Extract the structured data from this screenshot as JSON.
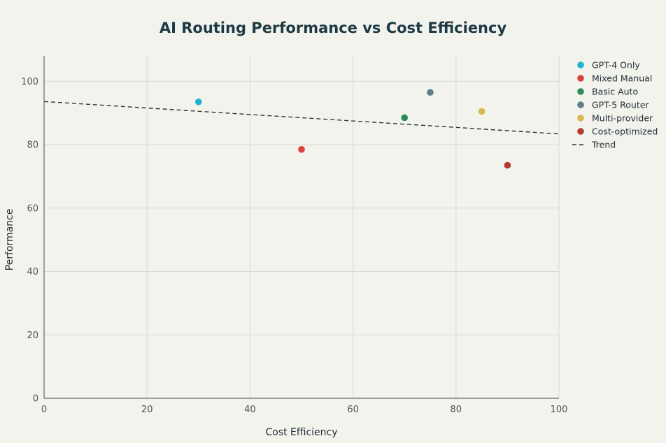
{
  "chart_data": {
    "type": "scatter",
    "title": "AI Routing Performance vs Cost Efficiency",
    "xlabel": "Cost Efficiency",
    "ylabel": "Performance",
    "xlim": [
      0,
      100
    ],
    "ylim": [
      0,
      108
    ],
    "xticks": [
      0,
      20,
      40,
      60,
      80,
      100
    ],
    "yticks": [
      0,
      20,
      40,
      60,
      80,
      100
    ],
    "grid": true,
    "legend_position": "top-right",
    "series": [
      {
        "name": "GPT-4 Only",
        "color": "#1fb5cf",
        "points": [
          {
            "x": 30,
            "y": 93.5
          }
        ]
      },
      {
        "name": "Mixed Manual",
        "color": "#d8403d",
        "points": [
          {
            "x": 50,
            "y": 78.5
          }
        ]
      },
      {
        "name": "Basic Auto",
        "color": "#2e8b57",
        "points": [
          {
            "x": 70,
            "y": 88.5
          }
        ]
      },
      {
        "name": "GPT-5 Router",
        "color": "#5e7f88",
        "points": [
          {
            "x": 75,
            "y": 96.5
          }
        ]
      },
      {
        "name": "Multi-provider",
        "color": "#d9b84b",
        "points": [
          {
            "x": 85,
            "y": 90.5
          }
        ]
      },
      {
        "name": "Cost-optimized",
        "color": "#b53a35",
        "points": [
          {
            "x": 90,
            "y": 73.5
          }
        ]
      }
    ],
    "trend": {
      "name": "Trend",
      "color": "#333333",
      "style": "dashed",
      "points": [
        {
          "x": 0,
          "y": 93.6
        },
        {
          "x": 100,
          "y": 83.4
        }
      ]
    }
  }
}
